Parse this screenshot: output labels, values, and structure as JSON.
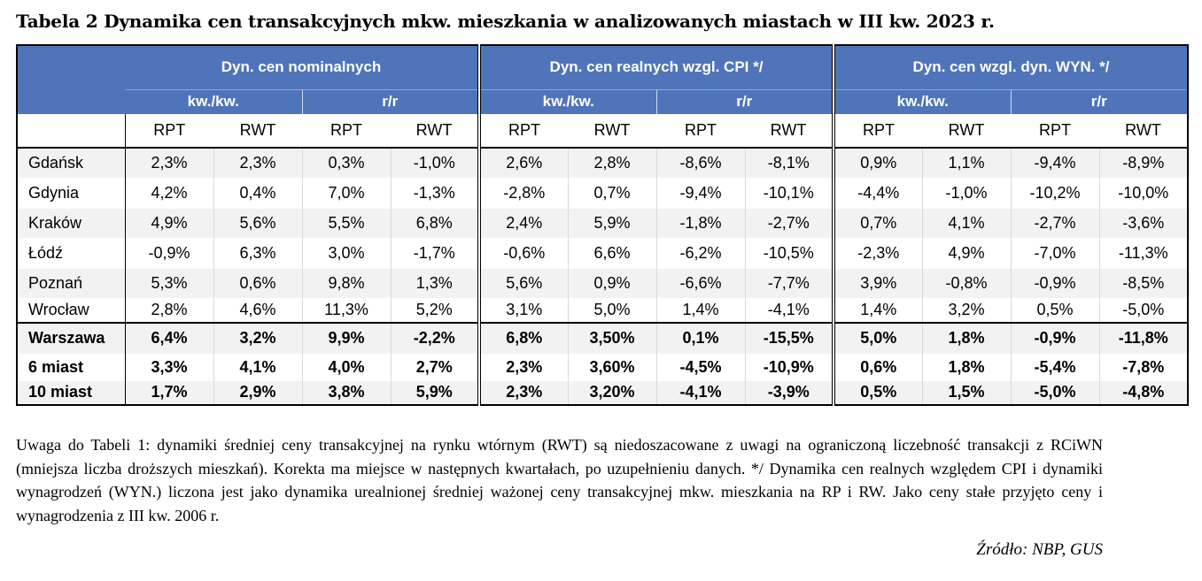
{
  "title": "Tabela 2 Dynamika cen transakcyjnych mkw. mieszkania w analizowanych miastach w III kw. 2023 r.",
  "table": {
    "groups": [
      "Dyn. cen nominalnych",
      "Dyn. cen realnych wzgl. CPI */",
      "Dyn. cen wzgl. dyn. WYN. */"
    ],
    "subgroups": [
      "kw./kw.",
      "r/r",
      "kw./kw.",
      "r/r",
      "kw./kw.",
      "r/r"
    ],
    "columns": [
      "RPT",
      "RWT",
      "RPT",
      "RWT",
      "RPT",
      "RWT",
      "RPT",
      "RWT",
      "RPT",
      "RWT",
      "RPT",
      "RWT"
    ],
    "rows": [
      {
        "name": "Gdańsk",
        "values": [
          "2,3%",
          "2,3%",
          "0,3%",
          "-1,0%",
          "2,6%",
          "2,8%",
          "-8,6%",
          "-8,1%",
          "0,9%",
          "1,1%",
          "-9,4%",
          "-8,9%"
        ]
      },
      {
        "name": "Gdynia",
        "values": [
          "4,2%",
          "0,4%",
          "7,0%",
          "-1,3%",
          "-2,8%",
          "0,7%",
          "-9,4%",
          "-10,1%",
          "-4,4%",
          "-1,0%",
          "-10,2%",
          "-10,0%"
        ]
      },
      {
        "name": "Kraków",
        "values": [
          "4,9%",
          "5,6%",
          "5,5%",
          "6,8%",
          "2,4%",
          "5,9%",
          "-1,8%",
          "-2,7%",
          "0,7%",
          "4,1%",
          "-2,7%",
          "-3,6%"
        ]
      },
      {
        "name": "Łódź",
        "values": [
          "-0,9%",
          "6,3%",
          "3,0%",
          "-1,7%",
          "-0,6%",
          "6,6%",
          "-6,2%",
          "-10,5%",
          "-2,3%",
          "4,9%",
          "-7,0%",
          "-11,3%"
        ]
      },
      {
        "name": "Poznań",
        "values": [
          "5,3%",
          "0,6%",
          "9,8%",
          "1,3%",
          "5,6%",
          "0,9%",
          "-6,6%",
          "-7,7%",
          "3,9%",
          "-0,8%",
          "-0,9%",
          "-8,5%"
        ]
      },
      {
        "name": "Wrocław",
        "values": [
          "2,8%",
          "4,6%",
          "11,3%",
          "5,2%",
          "3,1%",
          "5,0%",
          "1,4%",
          "-4,1%",
          "1,4%",
          "3,2%",
          "0,5%",
          "-5,0%"
        ]
      },
      {
        "name": "Warszawa",
        "values": [
          "6,4%",
          "3,2%",
          "9,9%",
          "-2,2%",
          "6,8%",
          "3,50%",
          "0,1%",
          "-15,5%",
          "5,0%",
          "1,8%",
          "-0,9%",
          "-11,8%"
        ]
      },
      {
        "name": "6 miast",
        "values": [
          "3,3%",
          "4,1%",
          "4,0%",
          "2,7%",
          "2,3%",
          "3,60%",
          "-4,5%",
          "-10,9%",
          "0,6%",
          "1,8%",
          "-5,4%",
          "-7,8%"
        ]
      },
      {
        "name": "10 miast",
        "values": [
          "1,7%",
          "2,9%",
          "3,8%",
          "5,9%",
          "2,3%",
          "3,20%",
          "-4,1%",
          "-3,9%",
          "0,5%",
          "1,5%",
          "-5,0%",
          "-4,8%"
        ]
      }
    ]
  },
  "note": "Uwaga do Tabeli 1: dynamiki średniej ceny transakcyjnej na rynku wtórnym (RWT) są niedoszacowane  z uwagi na ograniczoną liczebność transakcji z RCiWN (mniejsza liczba droższych mieszkań). Korekta ma miejsce w następnych kwartałach, po uzupełnieniu danych. */ Dynamika cen realnych względem CPI i dynamiki wynagrodzeń (WYN.) liczona jest jako dynamika urealnionej średniej ważonej ceny transakcyjnej mkw. mieszkania na RP i RW. Jako ceny stałe przyjęto ceny i wynagrodzenia z III kw. 2006 r.",
  "source": "Źródło: NBP, GUS"
}
